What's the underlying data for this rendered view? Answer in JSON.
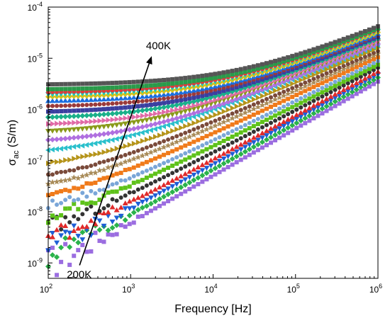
{
  "chart_data": {
    "type": "scatter",
    "xlabel": "Frequency [Hz]",
    "ylabel_main": "σ",
    "ylabel_sub": "ac",
    "ylabel_unit": " (S/m)",
    "x_scale": "log",
    "y_scale": "log",
    "xlim": [
      100,
      1000000
    ],
    "ylim": [
      5e-10,
      0.0001
    ],
    "x_ticks": [
      {
        "value": 100,
        "base": "10",
        "exp": "2"
      },
      {
        "value": 1000,
        "base": "10",
        "exp": "3"
      },
      {
        "value": 10000,
        "base": "10",
        "exp": "4"
      },
      {
        "value": 100000,
        "base": "10",
        "exp": "5"
      },
      {
        "value": 1000000,
        "base": "10",
        "exp": "6"
      }
    ],
    "y_ticks": [
      {
        "value": 1e-09,
        "base": "10",
        "exp": "-9"
      },
      {
        "value": 1e-08,
        "base": "10",
        "exp": "-8"
      },
      {
        "value": 1e-07,
        "base": "10",
        "exp": "-7"
      },
      {
        "value": 1e-06,
        "base": "10",
        "exp": "-6"
      },
      {
        "value": 1e-05,
        "base": "10",
        "exp": "-5"
      },
      {
        "value": 0.0001,
        "base": "10",
        "exp": "-4"
      }
    ],
    "grid": false,
    "legend": "none",
    "annotations": {
      "arrow_start": {
        "x": 240,
        "y": 9e-10
      },
      "arrow_end": {
        "x": 1800,
        "y": 1.1e-05
      },
      "label_high": "400K",
      "label_low": "200K"
    },
    "series": [
      {
        "color": "#9b6de0",
        "marker": "square",
        "dc": 2e-10,
        "s10": 3.5e-06,
        "n": 0.92,
        "jitter": 0.6
      },
      {
        "color": "#2ab34a",
        "marker": "diamond",
        "dc": 4e-10,
        "s10": 4.2e-06,
        "n": 0.9,
        "jitter": 0.5
      },
      {
        "color": "#1e5fd6",
        "marker": "triangle-down",
        "dc": 7e-10,
        "s10": 4.8e-06,
        "n": 0.88,
        "jitter": 0.45
      },
      {
        "color": "#e02a2a",
        "marker": "triangle-up",
        "dc": 1.2e-09,
        "s10": 5.5e-06,
        "n": 0.86,
        "jitter": 0.35
      },
      {
        "color": "#333333",
        "marker": "circle",
        "dc": 2e-09,
        "s10": 6.5e-06,
        "n": 0.83,
        "jitter": 0.3
      },
      {
        "color": "#5ec21a",
        "marker": "square",
        "dc": 3.5e-09,
        "s10": 7.5e-06,
        "n": 0.8,
        "jitter": 0.22
      },
      {
        "color": "#7aa6d8",
        "marker": "circle",
        "dc": 6.5e-09,
        "s10": 8.8e-06,
        "n": 0.78,
        "jitter": 0.15
      },
      {
        "color": "#f07a1a",
        "marker": "square",
        "dc": 1.1e-08,
        "s10": 1.05e-05,
        "n": 0.75,
        "jitter": 0.1
      },
      {
        "color": "#a98c5a",
        "marker": "star",
        "dc": 1.8e-08,
        "s10": 1.22e-05,
        "n": 0.72,
        "jitter": 0.05
      },
      {
        "color": "#7a4a3a",
        "marker": "circle",
        "dc": 3e-08,
        "s10": 1.38e-05,
        "n": 0.7,
        "jitter": 0.03
      },
      {
        "color": "#b5941a",
        "marker": "triangle-right",
        "dc": 6e-08,
        "s10": 1.6e-05,
        "n": 0.68,
        "jitter": 0.02
      },
      {
        "color": "#2ac0cc",
        "marker": "triangle-left",
        "dc": 1.2e-07,
        "s10": 1.8e-05,
        "n": 0.66,
        "jitter": 0.01
      },
      {
        "color": "#b070e0",
        "marker": "diamond",
        "dc": 2.1e-07,
        "s10": 1.9e-05,
        "n": 0.66,
        "jitter": 0
      },
      {
        "color": "#8a9a1a",
        "marker": "triangle-down",
        "dc": 3.3e-07,
        "s10": 2.1e-05,
        "n": 0.66,
        "jitter": 0
      },
      {
        "color": "#e06aa6",
        "marker": "triangle-right",
        "dc": 4.7e-07,
        "s10": 2.2e-05,
        "n": 0.66,
        "jitter": 0
      },
      {
        "color": "#1ab08a",
        "marker": "diamond",
        "dc": 6.5e-07,
        "s10": 2.4e-05,
        "n": 0.66,
        "jitter": 0
      },
      {
        "color": "#3a3fa0",
        "marker": "square",
        "dc": 8.5e-07,
        "s10": 2.6e-05,
        "n": 0.66,
        "jitter": 0
      },
      {
        "color": "#9a3a3a",
        "marker": "circle",
        "dc": 1.1e-06,
        "s10": 2.8e-05,
        "n": 0.66,
        "jitter": 0
      },
      {
        "color": "#1a6ee0",
        "marker": "triangle-up",
        "dc": 1.4e-06,
        "s10": 3e-05,
        "n": 0.66,
        "jitter": 0
      },
      {
        "color": "#d6c21a",
        "marker": "diamond",
        "dc": 1.7e-06,
        "s10": 3.2e-05,
        "n": 0.66,
        "jitter": 0
      },
      {
        "color": "#16c7c0",
        "marker": "triangle-down",
        "dc": 1.9e-06,
        "s10": 3.4e-05,
        "n": 0.66,
        "jitter": 0
      },
      {
        "color": "#e03a3a",
        "marker": "circle",
        "dc": 2.1e-06,
        "s10": 3.6e-05,
        "n": 0.66,
        "jitter": 0
      },
      {
        "color": "#2a9a4a",
        "marker": "square",
        "dc": 2.4e-06,
        "s10": 3.8e-05,
        "n": 0.66,
        "jitter": 0
      },
      {
        "color": "#555555",
        "marker": "square",
        "dc": 3e-06,
        "s10": 4.2e-05,
        "n": 0.66,
        "jitter": 0
      }
    ]
  }
}
